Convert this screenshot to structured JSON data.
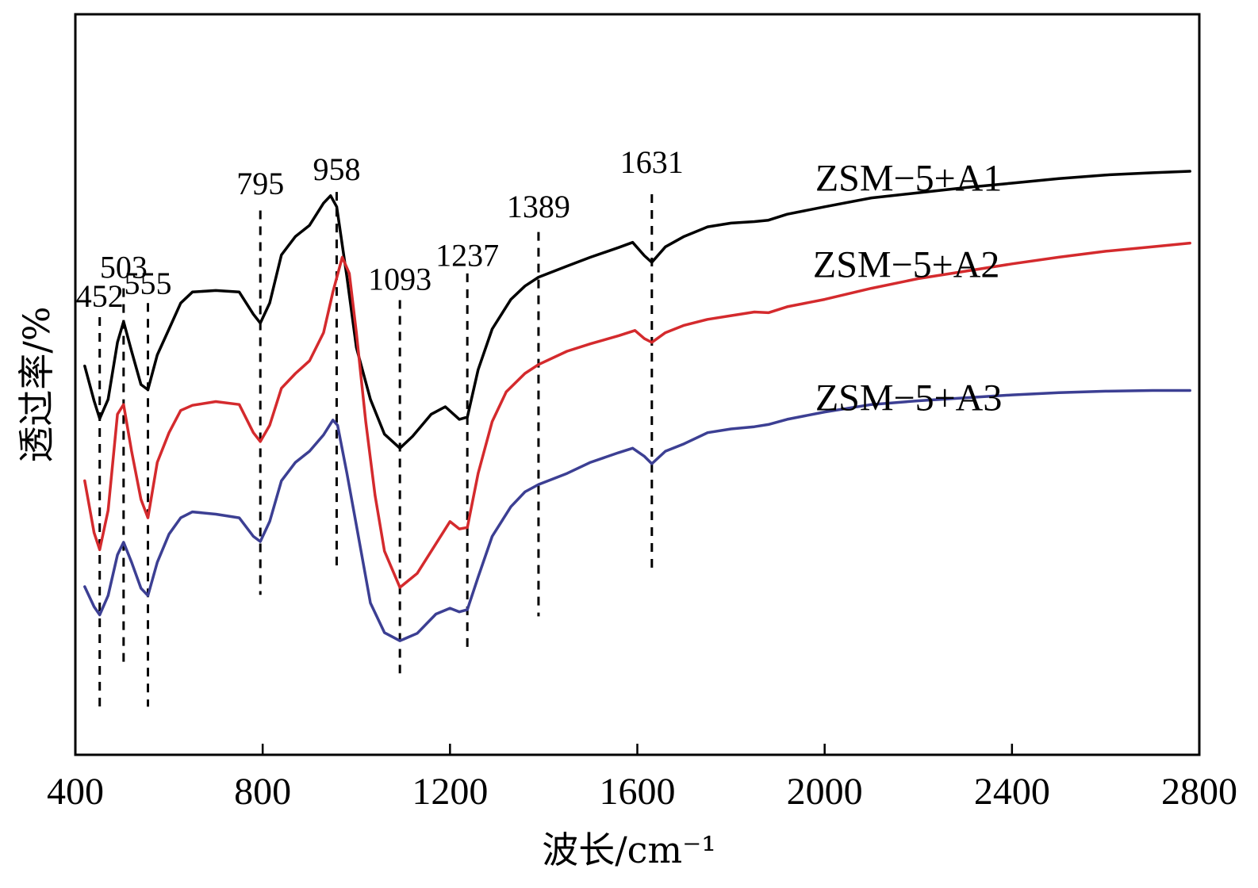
{
  "chart_data": {
    "type": "line",
    "title": "",
    "xlabel": "波长/cm⁻¹",
    "ylabel": "透过率/%",
    "xlim": [
      400,
      2800
    ],
    "ylim": [
      0,
      100
    ],
    "x_ticks": [
      {
        "value": 400,
        "label": "400"
      },
      {
        "value": 800,
        "label": "800"
      },
      {
        "value": 1200,
        "label": "1200"
      },
      {
        "value": 1600,
        "label": "1600"
      },
      {
        "value": 2000,
        "label": "2000"
      },
      {
        "value": 2400,
        "label": "2400"
      },
      {
        "value": 2800,
        "label": "2800"
      }
    ],
    "peaks": [
      {
        "x": 452,
        "label": "452",
        "label_y": 60.5,
        "y_top": 59.1,
        "y_bottom": 6.5
      },
      {
        "x": 503,
        "label": "503",
        "label_y": 64.4,
        "y_top": 63.0,
        "y_bottom": 11.8
      },
      {
        "x": 555,
        "label": "555",
        "label_y": 62.2,
        "y_top": 61.0,
        "y_bottom": 6.5
      },
      {
        "x": 795,
        "label": "795",
        "label_y": 75.7,
        "y_top": 73.5,
        "y_bottom": 21.6
      },
      {
        "x": 958,
        "label": "958",
        "label_y": 77.6,
        "y_top": 76.0,
        "y_bottom": 25.4
      },
      {
        "x": 1093,
        "label": "1093",
        "label_y": 62.8,
        "y_top": 61.4,
        "y_bottom": 11.0
      },
      {
        "x": 1237,
        "label": "1237",
        "label_y": 66.0,
        "y_top": 65.0,
        "y_bottom": 13.7
      },
      {
        "x": 1389,
        "label": "1389",
        "label_y": 72.6,
        "y_top": 70.6,
        "y_bottom": 18.7
      },
      {
        "x": 1631,
        "label": "1631",
        "label_y": 78.6,
        "y_top": 75.7,
        "y_bottom": 24.4
      }
    ],
    "series": [
      {
        "name": "ZSM−5+A1",
        "color": "#000000",
        "label_x": 1980,
        "label_y": 76.2,
        "points": [
          [
            420,
            52.5
          ],
          [
            440,
            47.8
          ],
          [
            452,
            45.4
          ],
          [
            470,
            48.0
          ],
          [
            490,
            55.7
          ],
          [
            503,
            58.5
          ],
          [
            520,
            54.5
          ],
          [
            540,
            50.0
          ],
          [
            555,
            49.3
          ],
          [
            575,
            54.0
          ],
          [
            600,
            57.5
          ],
          [
            625,
            61.0
          ],
          [
            650,
            62.5
          ],
          [
            700,
            62.7
          ],
          [
            750,
            62.5
          ],
          [
            780,
            59.5
          ],
          [
            795,
            58.3
          ],
          [
            815,
            61.0
          ],
          [
            840,
            67.5
          ],
          [
            870,
            70.0
          ],
          [
            900,
            71.5
          ],
          [
            930,
            74.5
          ],
          [
            945,
            75.5
          ],
          [
            958,
            74.0
          ],
          [
            980,
            64.5
          ],
          [
            1000,
            55.0
          ],
          [
            1030,
            48.0
          ],
          [
            1060,
            43.3
          ],
          [
            1093,
            41.4
          ],
          [
            1120,
            43.0
          ],
          [
            1160,
            46.0
          ],
          [
            1190,
            47.0
          ],
          [
            1220,
            45.3
          ],
          [
            1237,
            45.6
          ],
          [
            1260,
            52.0
          ],
          [
            1290,
            57.5
          ],
          [
            1330,
            61.5
          ],
          [
            1360,
            63.3
          ],
          [
            1389,
            64.5
          ],
          [
            1450,
            66.0
          ],
          [
            1500,
            67.2
          ],
          [
            1560,
            68.5
          ],
          [
            1590,
            69.2
          ],
          [
            1615,
            67.4
          ],
          [
            1631,
            66.5
          ],
          [
            1660,
            68.6
          ],
          [
            1700,
            70.0
          ],
          [
            1750,
            71.3
          ],
          [
            1800,
            71.8
          ],
          [
            1850,
            72.0
          ],
          [
            1880,
            72.2
          ],
          [
            1920,
            73.0
          ],
          [
            2000,
            74.0
          ],
          [
            2100,
            75.2
          ],
          [
            2200,
            75.9
          ],
          [
            2300,
            76.6
          ],
          [
            2400,
            77.2
          ],
          [
            2500,
            77.8
          ],
          [
            2600,
            78.3
          ],
          [
            2700,
            78.6
          ],
          [
            2780,
            78.8
          ]
        ]
      },
      {
        "name": "ZSM−5+A2",
        "color": "#d42a2d",
        "label_x": 1975,
        "label_y": 64.5,
        "points": [
          [
            420,
            37.0
          ],
          [
            440,
            30.0
          ],
          [
            452,
            27.7
          ],
          [
            470,
            33.0
          ],
          [
            490,
            46.0
          ],
          [
            503,
            47.3
          ],
          [
            520,
            41.0
          ],
          [
            540,
            34.5
          ],
          [
            555,
            32.0
          ],
          [
            575,
            39.5
          ],
          [
            600,
            43.5
          ],
          [
            625,
            46.5
          ],
          [
            650,
            47.2
          ],
          [
            700,
            47.7
          ],
          [
            750,
            47.3
          ],
          [
            780,
            43.5
          ],
          [
            795,
            42.3
          ],
          [
            815,
            44.5
          ],
          [
            840,
            49.5
          ],
          [
            870,
            51.5
          ],
          [
            900,
            53.2
          ],
          [
            930,
            57.0
          ],
          [
            950,
            62.5
          ],
          [
            970,
            67.2
          ],
          [
            985,
            65.0
          ],
          [
            1000,
            57.0
          ],
          [
            1020,
            45.0
          ],
          [
            1040,
            35.0
          ],
          [
            1060,
            27.5
          ],
          [
            1093,
            22.6
          ],
          [
            1130,
            24.5
          ],
          [
            1170,
            28.5
          ],
          [
            1200,
            31.5
          ],
          [
            1220,
            30.5
          ],
          [
            1237,
            30.7
          ],
          [
            1260,
            38.0
          ],
          [
            1290,
            45.0
          ],
          [
            1320,
            49.0
          ],
          [
            1360,
            51.5
          ],
          [
            1389,
            52.7
          ],
          [
            1450,
            54.5
          ],
          [
            1500,
            55.5
          ],
          [
            1560,
            56.6
          ],
          [
            1595,
            57.3
          ],
          [
            1615,
            56.2
          ],
          [
            1631,
            55.7
          ],
          [
            1660,
            57.0
          ],
          [
            1700,
            58.0
          ],
          [
            1750,
            58.8
          ],
          [
            1800,
            59.3
          ],
          [
            1850,
            59.8
          ],
          [
            1880,
            59.7
          ],
          [
            1920,
            60.5
          ],
          [
            2000,
            61.5
          ],
          [
            2100,
            63.0
          ],
          [
            2200,
            64.3
          ],
          [
            2300,
            65.3
          ],
          [
            2400,
            66.3
          ],
          [
            2500,
            67.2
          ],
          [
            2600,
            68.0
          ],
          [
            2700,
            68.6
          ],
          [
            2780,
            69.1
          ]
        ]
      },
      {
        "name": "ZSM−5+A3",
        "color": "#3c3f93",
        "label_x": 1980,
        "label_y": 46.5,
        "points": [
          [
            420,
            22.7
          ],
          [
            440,
            20.0
          ],
          [
            452,
            18.9
          ],
          [
            470,
            21.5
          ],
          [
            490,
            27.0
          ],
          [
            503,
            28.7
          ],
          [
            520,
            26.0
          ],
          [
            540,
            22.5
          ],
          [
            555,
            21.5
          ],
          [
            575,
            26.0
          ],
          [
            600,
            29.8
          ],
          [
            625,
            32.0
          ],
          [
            650,
            32.8
          ],
          [
            700,
            32.5
          ],
          [
            750,
            32.0
          ],
          [
            780,
            29.5
          ],
          [
            795,
            28.8
          ],
          [
            815,
            31.5
          ],
          [
            840,
            37.0
          ],
          [
            870,
            39.5
          ],
          [
            900,
            41.0
          ],
          [
            930,
            43.2
          ],
          [
            950,
            45.2
          ],
          [
            960,
            44.5
          ],
          [
            980,
            38.0
          ],
          [
            1000,
            31.0
          ],
          [
            1030,
            20.5
          ],
          [
            1060,
            16.5
          ],
          [
            1093,
            15.4
          ],
          [
            1130,
            16.4
          ],
          [
            1170,
            19.0
          ],
          [
            1200,
            19.8
          ],
          [
            1220,
            19.3
          ],
          [
            1237,
            19.6
          ],
          [
            1260,
            24.0
          ],
          [
            1290,
            29.5
          ],
          [
            1330,
            33.5
          ],
          [
            1360,
            35.5
          ],
          [
            1389,
            36.5
          ],
          [
            1450,
            38.0
          ],
          [
            1500,
            39.5
          ],
          [
            1560,
            40.8
          ],
          [
            1590,
            41.4
          ],
          [
            1615,
            40.3
          ],
          [
            1631,
            39.3
          ],
          [
            1660,
            41.0
          ],
          [
            1700,
            42.0
          ],
          [
            1750,
            43.5
          ],
          [
            1800,
            44.0
          ],
          [
            1850,
            44.3
          ],
          [
            1880,
            44.6
          ],
          [
            1920,
            45.3
          ],
          [
            2000,
            46.3
          ],
          [
            2100,
            47.3
          ],
          [
            2200,
            47.8
          ],
          [
            2300,
            48.2
          ],
          [
            2400,
            48.6
          ],
          [
            2500,
            48.9
          ],
          [
            2600,
            49.1
          ],
          [
            2700,
            49.2
          ],
          [
            2780,
            49.2
          ]
        ]
      }
    ]
  }
}
